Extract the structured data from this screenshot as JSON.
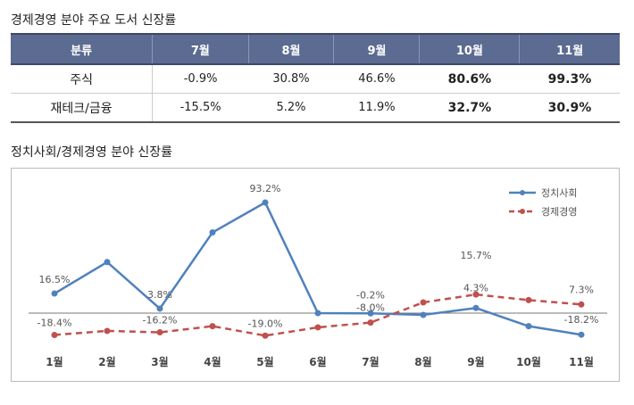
{
  "table": {
    "title": "경제경영 분야 주요 도서 신장률",
    "headers": [
      "분류",
      "7월",
      "8월",
      "9월",
      "10월",
      "11월"
    ],
    "rows": [
      {
        "label": "주식",
        "values": [
          "-0.9%",
          "30.8%",
          "46.6%",
          "80.6%",
          "99.3%"
        ]
      },
      {
        "label": "재테크/금융",
        "values": [
          "-15.5%",
          "5.2%",
          "11.9%",
          "32.7%",
          "30.9%"
        ]
      }
    ]
  },
  "chart_data": {
    "type": "line",
    "title": "정치사회/경제경영 분야 신장률",
    "categories": [
      "1월",
      "2월",
      "3월",
      "4월",
      "5월",
      "6월",
      "7월",
      "8월",
      "9월",
      "10월",
      "11월"
    ],
    "series": [
      {
        "name": "정치사회",
        "color": "#4f81bd",
        "style": "solid",
        "values": [
          16.5,
          43,
          3.8,
          68,
          93.2,
          0,
          -0.2,
          -1.5,
          4.3,
          -11,
          -18.2
        ],
        "labels": [
          "16.5%",
          "",
          "3.8%",
          "",
          "93.2%",
          "",
          "-0.2%",
          "",
          "4.3%",
          "",
          "-18.2%"
        ]
      },
      {
        "name": "경제경영",
        "color": "#c0504d",
        "style": "dashed",
        "values": [
          -18.4,
          -15,
          -16.2,
          -11,
          -19.0,
          -12,
          -8.0,
          9,
          15.7,
          11,
          7.3
        ],
        "labels": [
          "-18.4%",
          "",
          "-16.2%",
          "",
          "-19.0%",
          "",
          "-8.0%",
          "",
          "15.7%",
          "",
          "7.3%"
        ]
      }
    ],
    "legend": "top-right",
    "grid": false
  }
}
